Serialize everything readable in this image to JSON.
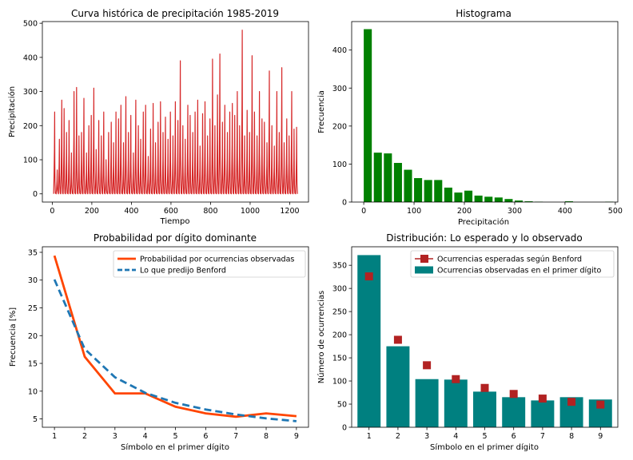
{
  "charts": {
    "tl": {
      "type": "line",
      "title": "Curva histórica de precipitación 1985-2019",
      "xlabel": "Tiempo",
      "ylabel": "Precipitación",
      "xlim": [
        -50,
        1295
      ],
      "ylim": [
        -24,
        505
      ],
      "xticks": [
        0,
        200,
        400,
        600,
        800,
        1000,
        1200
      ],
      "yticks": [
        0,
        100,
        200,
        300,
        400,
        500
      ],
      "color": "#d62728",
      "peaks": [
        [
          12,
          240
        ],
        [
          25,
          70
        ],
        [
          36,
          160
        ],
        [
          48,
          275
        ],
        [
          60,
          250
        ],
        [
          72,
          180
        ],
        [
          85,
          215
        ],
        [
          97,
          120
        ],
        [
          110,
          300
        ],
        [
          123,
          312
        ],
        [
          135,
          170
        ],
        [
          148,
          180
        ],
        [
          160,
          280
        ],
        [
          173,
          120
        ],
        [
          185,
          200
        ],
        [
          197,
          230
        ],
        [
          210,
          310
        ],
        [
          222,
          130
        ],
        [
          235,
          215
        ],
        [
          248,
          170
        ],
        [
          260,
          240
        ],
        [
          272,
          100
        ],
        [
          285,
          180
        ],
        [
          298,
          210
        ],
        [
          310,
          150
        ],
        [
          322,
          240
        ],
        [
          335,
          220
        ],
        [
          347,
          260
        ],
        [
          360,
          150
        ],
        [
          372,
          285
        ],
        [
          385,
          180
        ],
        [
          397,
          230
        ],
        [
          410,
          120
        ],
        [
          422,
          275
        ],
        [
          435,
          200
        ],
        [
          447,
          160
        ],
        [
          460,
          240
        ],
        [
          472,
          260
        ],
        [
          485,
          110
        ],
        [
          497,
          190
        ],
        [
          510,
          265
        ],
        [
          522,
          150
        ],
        [
          535,
          210
        ],
        [
          547,
          270
        ],
        [
          560,
          180
        ],
        [
          572,
          225
        ],
        [
          585,
          160
        ],
        [
          597,
          240
        ],
        [
          610,
          170
        ],
        [
          622,
          270
        ],
        [
          635,
          215
        ],
        [
          647,
          390
        ],
        [
          660,
          200
        ],
        [
          672,
          160
        ],
        [
          685,
          260
        ],
        [
          697,
          230
        ],
        [
          710,
          180
        ],
        [
          722,
          240
        ],
        [
          735,
          275
        ],
        [
          747,
          140
        ],
        [
          760,
          235
        ],
        [
          772,
          270
        ],
        [
          785,
          170
        ],
        [
          797,
          220
        ],
        [
          810,
          395
        ],
        [
          822,
          200
        ],
        [
          835,
          290
        ],
        [
          847,
          410
        ],
        [
          860,
          210
        ],
        [
          872,
          260
        ],
        [
          885,
          180
        ],
        [
          897,
          240
        ],
        [
          910,
          265
        ],
        [
          922,
          230
        ],
        [
          935,
          300
        ],
        [
          947,
          200
        ],
        [
          960,
          480
        ],
        [
          972,
          170
        ],
        [
          985,
          245
        ],
        [
          997,
          180
        ],
        [
          1010,
          405
        ],
        [
          1022,
          240
        ],
        [
          1035,
          170
        ],
        [
          1047,
          300
        ],
        [
          1060,
          220
        ],
        [
          1072,
          210
        ],
        [
          1085,
          150
        ],
        [
          1097,
          360
        ],
        [
          1110,
          200
        ],
        [
          1122,
          140
        ],
        [
          1135,
          300
        ],
        [
          1147,
          180
        ],
        [
          1160,
          370
        ],
        [
          1172,
          150
        ],
        [
          1185,
          220
        ],
        [
          1197,
          170
        ],
        [
          1210,
          300
        ],
        [
          1222,
          190
        ],
        [
          1235,
          195
        ]
      ]
    },
    "tr": {
      "type": "bar",
      "title": "Histograma",
      "xlabel": "Precipitación",
      "ylabel": "Frecuencia",
      "xlim": [
        -24,
        505
      ],
      "ylim": [
        0,
        475
      ],
      "xticks": [
        0,
        100,
        200,
        300,
        400,
        500
      ],
      "yticks": [
        0,
        100,
        200,
        300,
        400
      ],
      "color": "#008000",
      "bin_width": 20,
      "bin_starts": [
        0,
        20,
        40,
        60,
        80,
        100,
        120,
        140,
        160,
        180,
        200,
        220,
        240,
        260,
        280,
        300,
        320,
        340,
        360,
        380,
        400,
        420,
        440,
        460,
        480
      ],
      "values": [
        455,
        130,
        128,
        103,
        85,
        63,
        58,
        58,
        38,
        25,
        30,
        17,
        14,
        12,
        8,
        4,
        2,
        1,
        0,
        0,
        2,
        0,
        0,
        0,
        1
      ]
    },
    "bl": {
      "type": "line",
      "title": "Probabilidad por dígito dominante",
      "xlabel": "Símbolo en el primer dígito",
      "ylabel": "Frecuencia [%]",
      "xlim": [
        0.6,
        9.4
      ],
      "ylim": [
        3.5,
        36
      ],
      "xticks": [
        1,
        2,
        3,
        4,
        5,
        6,
        7,
        8,
        9
      ],
      "yticks": [
        5,
        10,
        15,
        20,
        25,
        30,
        35
      ],
      "x": [
        1,
        2,
        3,
        4,
        5,
        6,
        7,
        8,
        9
      ],
      "series": [
        {
          "name": "Probabilidad por ocurrencias observadas",
          "color": "#ff4500",
          "dash": "",
          "values": [
            34.4,
            16.2,
            9.6,
            9.6,
            7.2,
            6.0,
            5.4,
            6.0,
            5.5
          ]
        },
        {
          "name": "Lo que predijo Benford",
          "color": "#1f77b4",
          "dash": "9,5",
          "values": [
            30.1,
            17.6,
            12.5,
            9.7,
            7.9,
            6.7,
            5.8,
            5.1,
            4.6
          ]
        }
      ],
      "legend": "top-right"
    },
    "br": {
      "type": "bar",
      "title": "Distribución: Lo esperado y lo observado",
      "xlabel": "Símbolo en el primer dígito",
      "ylabel": "Número de ocurrencias",
      "xlim": [
        0.4,
        9.6
      ],
      "ylim": [
        0,
        390
      ],
      "xticks": [
        1,
        2,
        3,
        4,
        5,
        6,
        7,
        8,
        9
      ],
      "yticks": [
        0,
        50,
        100,
        150,
        200,
        250,
        300,
        350
      ],
      "categories": [
        1,
        2,
        3,
        4,
        5,
        6,
        7,
        8,
        9
      ],
      "series": [
        {
          "name": "Ocurrencias esperadas según Benford",
          "color": "#b22222",
          "marker": "square",
          "values": [
            326,
            189,
            134,
            104,
            85,
            72,
            62,
            55,
            49
          ]
        },
        {
          "name": "Ocurrencias observadas en el primer dígito",
          "color": "#008080",
          "marker": "bar",
          "values": [
            372,
            175,
            104,
            103,
            77,
            65,
            58,
            65,
            60
          ]
        }
      ],
      "legend": "top-right"
    }
  }
}
